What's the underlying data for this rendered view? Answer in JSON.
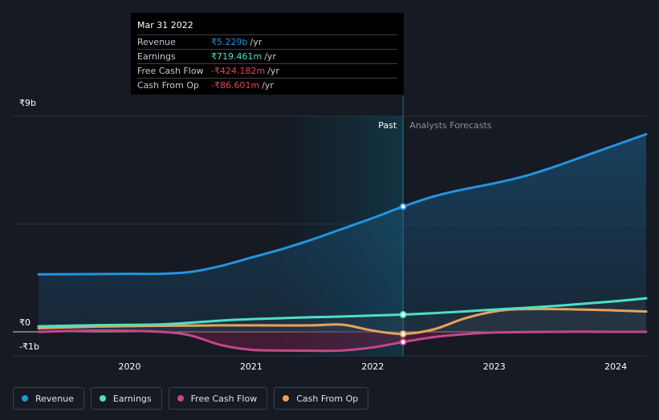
{
  "chart_data": {
    "type": "line",
    "y_axis": {
      "min": -1,
      "max": 9,
      "unit": "b",
      "currency": "₹",
      "tick_labels": [
        "₹9b",
        "₹0",
        "-₹1b"
      ],
      "tick_values": [
        9,
        0,
        -1
      ]
    },
    "x_axis": {
      "tick_labels": [
        "2020",
        "2021",
        "2022",
        "2023",
        "2024"
      ],
      "tick_values": [
        2020,
        2021,
        2022,
        2023,
        2024
      ],
      "range": [
        2019.25,
        2024.25
      ]
    },
    "past_label": "Past",
    "forecast_label": "Analysts Forecasts",
    "past_start": 2021.25,
    "divider_x": 2022.25,
    "series": [
      {
        "name": "Revenue",
        "color": "#2394df",
        "points": [
          [
            2019.25,
            2.4
          ],
          [
            2020.0,
            2.42
          ],
          [
            2020.25,
            2.42
          ],
          [
            2020.5,
            2.5
          ],
          [
            2020.75,
            2.75
          ],
          [
            2021.0,
            3.1
          ],
          [
            2021.25,
            3.45
          ],
          [
            2021.5,
            3.85
          ],
          [
            2021.75,
            4.3
          ],
          [
            2022.0,
            4.75
          ],
          [
            2022.25,
            5.229
          ],
          [
            2022.5,
            5.65
          ],
          [
            2022.75,
            5.95
          ],
          [
            2023.0,
            6.2
          ],
          [
            2023.25,
            6.5
          ],
          [
            2023.5,
            6.9
          ],
          [
            2023.75,
            7.35
          ],
          [
            2024.0,
            7.8
          ],
          [
            2024.25,
            8.25
          ]
        ]
      },
      {
        "name": "Earnings",
        "color": "#4fe0c4",
        "points": [
          [
            2019.25,
            0.23
          ],
          [
            2019.75,
            0.28
          ],
          [
            2020.25,
            0.31
          ],
          [
            2020.5,
            0.38
          ],
          [
            2020.75,
            0.47
          ],
          [
            2021.0,
            0.53
          ],
          [
            2021.25,
            0.57
          ],
          [
            2021.5,
            0.61
          ],
          [
            2021.75,
            0.64
          ],
          [
            2022.0,
            0.68
          ],
          [
            2022.25,
            0.719
          ],
          [
            2022.5,
            0.78
          ],
          [
            2022.75,
            0.85
          ],
          [
            2023.0,
            0.93
          ],
          [
            2023.25,
            1.0
          ],
          [
            2023.5,
            1.08
          ],
          [
            2023.75,
            1.18
          ],
          [
            2024.0,
            1.28
          ],
          [
            2024.25,
            1.4
          ]
        ]
      },
      {
        "name": "Free Cash Flow",
        "color": "#c7468c",
        "points": [
          [
            2019.25,
            0.0
          ],
          [
            2019.75,
            0.05
          ],
          [
            2020.25,
            0.0
          ],
          [
            2020.5,
            -0.15
          ],
          [
            2020.75,
            -0.55
          ],
          [
            2021.0,
            -0.75
          ],
          [
            2021.25,
            -0.78
          ],
          [
            2021.5,
            -0.79
          ],
          [
            2021.75,
            -0.78
          ],
          [
            2022.0,
            -0.65
          ],
          [
            2022.25,
            -0.424
          ],
          [
            2022.5,
            -0.22
          ],
          [
            2022.75,
            -0.1
          ],
          [
            2023.0,
            -0.03
          ],
          [
            2023.5,
            0.0
          ],
          [
            2024.0,
            0.0
          ],
          [
            2024.25,
            0.0
          ]
        ]
      },
      {
        "name": "Cash From Op",
        "color": "#e8a25a",
        "points": [
          [
            2019.25,
            0.15
          ],
          [
            2019.75,
            0.22
          ],
          [
            2020.25,
            0.25
          ],
          [
            2020.75,
            0.27
          ],
          [
            2021.0,
            0.27
          ],
          [
            2021.5,
            0.27
          ],
          [
            2021.75,
            0.3
          ],
          [
            2022.0,
            0.05
          ],
          [
            2022.25,
            -0.087
          ],
          [
            2022.5,
            0.1
          ],
          [
            2022.75,
            0.55
          ],
          [
            2023.0,
            0.85
          ],
          [
            2023.25,
            0.95
          ],
          [
            2023.75,
            0.93
          ],
          [
            2024.25,
            0.85
          ]
        ]
      }
    ]
  },
  "tooltip": {
    "date": "Mar 31 2022",
    "rows": [
      {
        "label": "Revenue",
        "value": "₹5.229b",
        "unit": "/yr",
        "color": "#2394df"
      },
      {
        "label": "Earnings",
        "value": "₹719.461m",
        "unit": "/yr",
        "color": "#4fe0c4"
      },
      {
        "label": "Free Cash Flow",
        "value": "-₹424.182m",
        "unit": "/yr",
        "color": "#e5484d"
      },
      {
        "label": "Cash From Op",
        "value": "-₹86.601m",
        "unit": "/yr",
        "color": "#e5484d"
      }
    ]
  },
  "legend": [
    {
      "label": "Revenue",
      "color": "#2394df"
    },
    {
      "label": "Earnings",
      "color": "#4fe0c4"
    },
    {
      "label": "Free Cash Flow",
      "color": "#c7468c"
    },
    {
      "label": "Cash From Op",
      "color": "#e8a25a"
    }
  ]
}
